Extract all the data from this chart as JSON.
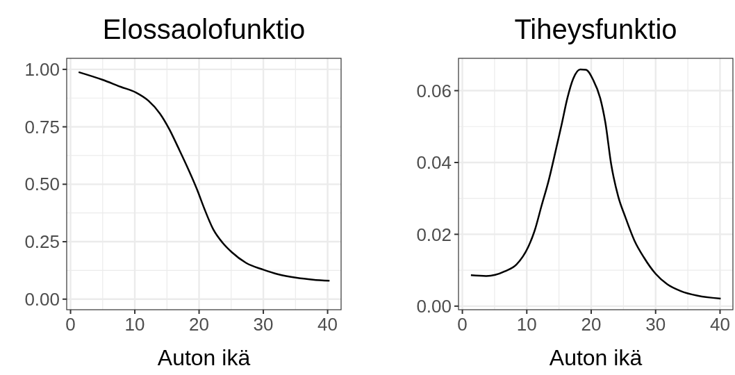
{
  "chart_data": [
    {
      "type": "line",
      "title": "Elossaolofunktio",
      "xlabel": "Auton ikä",
      "grid": true,
      "xlim": [
        -0.6,
        42.1
      ],
      "ylim": [
        -0.046,
        1.048
      ],
      "xticks": [
        0,
        10,
        20,
        30,
        40
      ],
      "yticks": [
        {
          "value": 0,
          "label": "0.00"
        },
        {
          "value": 0.25,
          "label": "0.25"
        },
        {
          "value": 0.5,
          "label": "0.50"
        },
        {
          "value": 0.75,
          "label": "0.75"
        },
        {
          "value": 1,
          "label": "1.00"
        }
      ],
      "series": [
        {
          "color": "#000000",
          "x": [
            1.26,
            4.94,
            7.8,
            10.2,
            12.1,
            13.9,
            15.4,
            16.8,
            18.3,
            19.7,
            20.8,
            22.2,
            23.7,
            25.1,
            27.3,
            30.0,
            32.3,
            35.2,
            37.7,
            40.3
          ],
          "values": [
            0.988,
            0.955,
            0.924,
            0.899,
            0.864,
            0.808,
            0.738,
            0.657,
            0.567,
            0.476,
            0.395,
            0.304,
            0.244,
            0.204,
            0.158,
            0.128,
            0.108,
            0.093,
            0.085,
            0.08
          ]
        }
      ]
    },
    {
      "type": "line",
      "title": "Tiheysfunktio",
      "xlabel": "Auton ikä",
      "grid": true,
      "xlim": [
        -0.6,
        42.0
      ],
      "ylim": [
        -0.001,
        0.069
      ],
      "xticks": [
        0,
        10,
        20,
        30,
        40
      ],
      "yticks": [
        {
          "value": 0,
          "label": "0.00"
        },
        {
          "value": 0.02,
          "label": "0.02"
        },
        {
          "value": 0.04,
          "label": "0.04"
        },
        {
          "value": 0.06,
          "label": "0.06"
        }
      ],
      "series": [
        {
          "color": "#000000",
          "x": [
            1.33,
            3.7,
            5.1,
            6.6,
            8.4,
            10.2,
            11.2,
            12.3,
            13.4,
            14.5,
            15.4,
            16.3,
            17.2,
            18.3,
            19.2,
            20.3,
            21.4,
            22.2,
            23.1,
            24.2,
            25.3,
            26.7,
            28.2,
            30.0,
            31.8,
            33.9,
            36.5,
            40.1
          ],
          "values": [
            0.0086,
            0.0084,
            0.0087,
            0.0097,
            0.0116,
            0.0164,
            0.0209,
            0.028,
            0.035,
            0.0434,
            0.0505,
            0.0579,
            0.0633,
            0.0659,
            0.0658,
            0.063,
            0.0579,
            0.0511,
            0.0395,
            0.0305,
            0.0248,
            0.0183,
            0.0135,
            0.009,
            0.0061,
            0.0042,
            0.0029,
            0.0021
          ]
        }
      ]
    }
  ]
}
